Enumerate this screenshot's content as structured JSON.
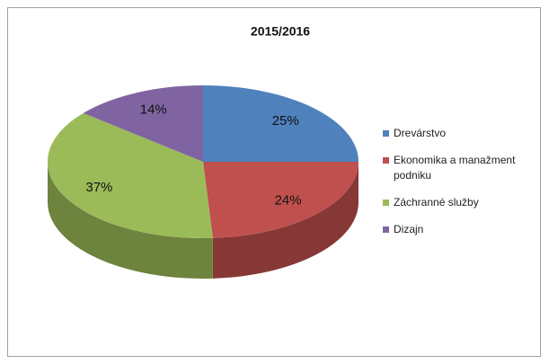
{
  "chart_data": {
    "type": "pie",
    "title": "2015/2016",
    "categories": [
      "Drevárstvo",
      "Ekonomika a manažment podniku",
      "Záchranné služby",
      "Dizajn"
    ],
    "values": [
      25,
      24,
      37,
      14
    ],
    "value_labels": [
      "25%",
      "24%",
      "37%",
      "14%"
    ],
    "colors": [
      "#4f81bd",
      "#c0504d",
      "#9bbb59",
      "#8064a2"
    ],
    "legend": "right"
  }
}
